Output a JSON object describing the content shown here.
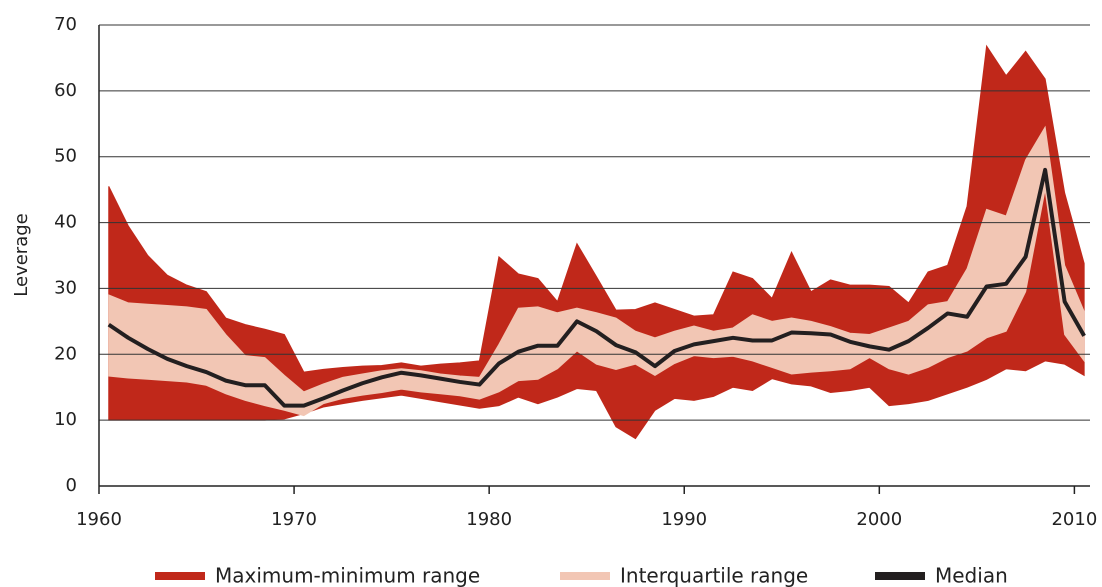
{
  "chart_data": {
    "type": "band-line",
    "ylabel": "Leverage",
    "x": [
      1960.5,
      1961.5,
      1962.5,
      1963.5,
      1964.5,
      1965.5,
      1966.5,
      1967.5,
      1968.5,
      1969.5,
      1970.5,
      1971.5,
      1972.5,
      1973.5,
      1974.5,
      1975.5,
      1976.5,
      1977.5,
      1978.5,
      1979.5,
      1980.5,
      1981.5,
      1982.5,
      1983.5,
      1984.5,
      1985.5,
      1986.5,
      1987.5,
      1988.5,
      1989.5,
      1990.5,
      1991.5,
      1992.5,
      1993.5,
      1994.5,
      1995.5,
      1996.5,
      1997.5,
      1998.5,
      1999.5,
      2000.5,
      2001.5,
      2002.5,
      2003.5,
      2004.5,
      2005.5,
      2006.5,
      2007.5,
      2008.5,
      2009.5,
      2010.5
    ],
    "series": [
      {
        "name": "Maximum-minimum range",
        "color": "#c0281a",
        "upper": [
          45.5,
          39.5,
          35.0,
          32.0,
          30.5,
          29.5,
          25.5,
          24.5,
          23.8,
          23.0,
          17.3,
          17.7,
          18.0,
          18.2,
          18.3,
          18.7,
          18.2,
          18.5,
          18.7,
          19.0,
          34.8,
          32.2,
          31.5,
          28.0,
          36.8,
          31.8,
          26.7,
          26.8,
          27.8,
          26.8,
          25.8,
          26.0,
          32.5,
          31.5,
          28.5,
          35.5,
          29.5,
          31.3,
          30.5,
          30.5,
          30.3,
          27.8,
          32.5,
          33.5,
          42.5,
          66.8,
          62.3,
          66.0,
          61.8,
          44.5,
          33.8
        ],
        "lower": [
          10.0,
          10.0,
          10.0,
          10.0,
          10.0,
          10.0,
          10.0,
          10.0,
          10.0,
          10.2,
          11.0,
          12.0,
          12.5,
          13.0,
          13.4,
          13.8,
          13.3,
          12.8,
          12.3,
          11.8,
          12.2,
          13.5,
          12.5,
          13.5,
          14.8,
          14.5,
          9.0,
          7.2,
          11.5,
          13.3,
          13.0,
          13.6,
          15.0,
          14.5,
          16.3,
          15.5,
          15.2,
          14.2,
          14.5,
          15.0,
          12.2,
          12.5,
          13.0,
          14.0,
          15.0,
          16.2,
          17.8,
          17.5,
          19.0,
          18.5,
          16.8
        ]
      },
      {
        "name": "Interquartile range",
        "color": "#f2c6b4",
        "upper": [
          29.0,
          27.8,
          27.6,
          27.4,
          27.2,
          26.8,
          23.0,
          19.8,
          19.5,
          16.8,
          14.3,
          15.5,
          16.5,
          17.0,
          17.5,
          17.8,
          17.5,
          17.0,
          16.7,
          16.5,
          21.5,
          27.0,
          27.2,
          26.3,
          27.0,
          26.3,
          25.5,
          23.5,
          22.5,
          23.5,
          24.3,
          23.5,
          24.0,
          26.0,
          25.0,
          25.5,
          25.0,
          24.2,
          23.2,
          23.0,
          24.0,
          25.0,
          27.5,
          28.0,
          33.0,
          42.0,
          41.0,
          49.5,
          54.5,
          33.5,
          26.5
        ],
        "lower": [
          16.7,
          16.4,
          16.2,
          16.0,
          15.8,
          15.3,
          14.0,
          13.0,
          12.2,
          11.5,
          10.7,
          12.5,
          13.3,
          13.8,
          14.2,
          14.7,
          14.3,
          14.0,
          13.7,
          13.2,
          14.3,
          16.0,
          16.2,
          17.8,
          20.5,
          18.5,
          17.7,
          18.5,
          16.8,
          18.6,
          19.8,
          19.5,
          19.7,
          19.0,
          18.0,
          17.0,
          17.3,
          17.5,
          17.8,
          19.5,
          17.8,
          17.0,
          18.0,
          19.5,
          20.5,
          22.5,
          23.5,
          29.5,
          45.0,
          23.0,
          19.0
        ]
      },
      {
        "name": "Median",
        "color": "#231f20",
        "values": [
          24.5,
          22.5,
          20.8,
          19.3,
          18.2,
          17.3,
          16.0,
          15.3,
          15.3,
          12.2,
          12.2,
          13.3,
          14.5,
          15.6,
          16.5,
          17.2,
          16.8,
          16.3,
          15.8,
          15.4,
          18.6,
          20.4,
          21.3,
          21.3,
          25.0,
          23.5,
          21.4,
          20.3,
          18.2,
          20.5,
          21.5,
          22.0,
          22.5,
          22.1,
          22.1,
          23.3,
          23.2,
          23.0,
          21.9,
          21.2,
          20.7,
          22.0,
          24.0,
          26.2,
          25.7,
          30.3,
          30.7,
          34.8,
          48.0,
          28.0,
          22.8
        ]
      }
    ],
    "xlim": [
      1960,
      2010.8
    ],
    "xticks": [
      1960,
      1970,
      1980,
      1990,
      2000,
      2010
    ],
    "ylim": [
      0,
      70
    ],
    "yticks": [
      0,
      10,
      20,
      30,
      40,
      50,
      60,
      70
    ],
    "grid": true
  }
}
